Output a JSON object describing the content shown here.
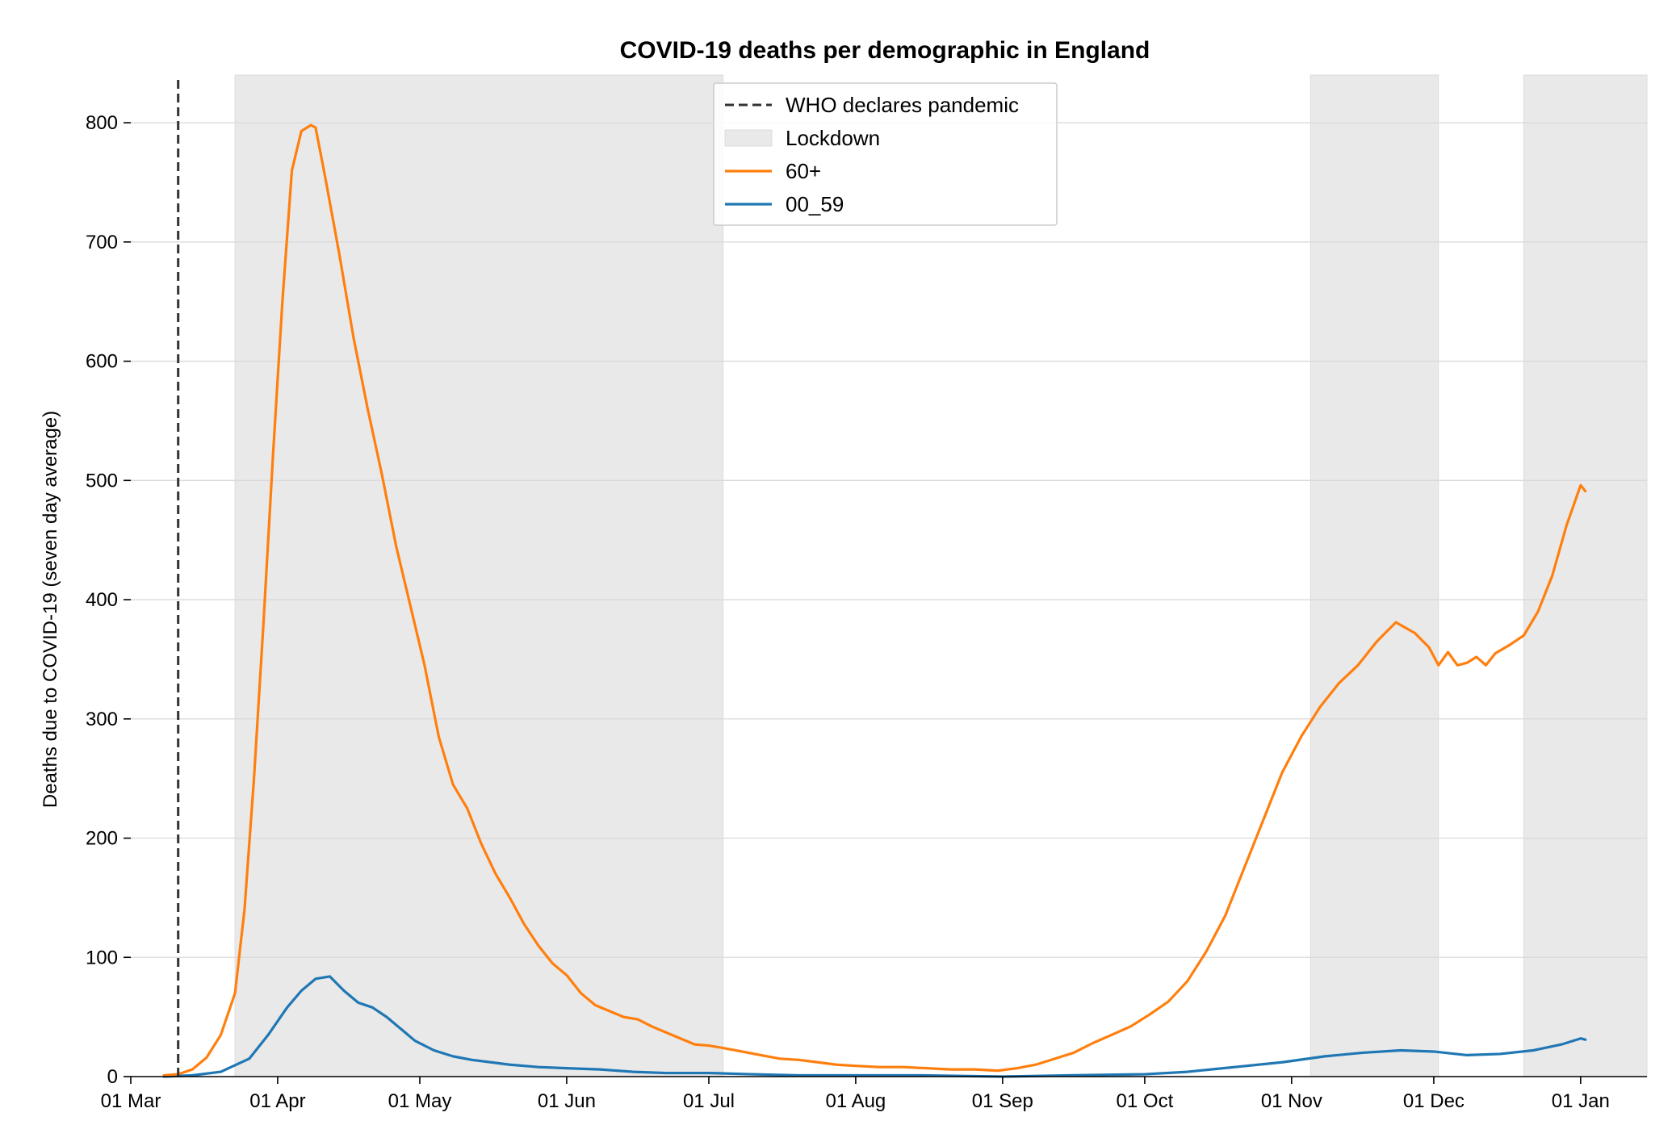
{
  "chart_data": {
    "type": "line",
    "title": "COVID-19 deaths per demographic in England",
    "xlabel": "",
    "ylabel": "Deaths due to COVID-19 (seven day average)",
    "x_range": [
      "2020-03-01",
      "2021-01-15"
    ],
    "ylim": [
      0,
      840
    ],
    "y_ticks": [
      0,
      100,
      200,
      300,
      400,
      500,
      600,
      700,
      800
    ],
    "x_ticks": [
      {
        "date": "2020-03-01",
        "label": "01 Mar"
      },
      {
        "date": "2020-04-01",
        "label": "01 Apr"
      },
      {
        "date": "2020-05-01",
        "label": "01 May"
      },
      {
        "date": "2020-06-01",
        "label": "01 Jun"
      },
      {
        "date": "2020-07-01",
        "label": "01 Jul"
      },
      {
        "date": "2020-08-01",
        "label": "01 Aug"
      },
      {
        "date": "2020-09-01",
        "label": "01 Sep"
      },
      {
        "date": "2020-10-01",
        "label": "01 Oct"
      },
      {
        "date": "2020-11-01",
        "label": "01 Nov"
      },
      {
        "date": "2020-12-01",
        "label": "01 Dec"
      },
      {
        "date": "2021-01-01",
        "label": "01 Jan"
      }
    ],
    "grid": "horizontal",
    "legend_position": "top-center",
    "pandemic_line": {
      "date": "2020-03-11",
      "label": "WHO declares pandemic",
      "color": "#333333"
    },
    "lockdowns": {
      "label": "Lockdown",
      "color": "#e9e9e9",
      "periods": [
        [
          "2020-03-23",
          "2020-07-04"
        ],
        [
          "2020-11-05",
          "2020-12-02"
        ],
        [
          "2020-12-20",
          "2021-01-15"
        ]
      ]
    },
    "series": [
      {
        "name": "60+",
        "color": "#ff7f0e",
        "points": [
          [
            "2020-03-08",
            1
          ],
          [
            "2020-03-11",
            2
          ],
          [
            "2020-03-14",
            6
          ],
          [
            "2020-03-17",
            16
          ],
          [
            "2020-03-20",
            35
          ],
          [
            "2020-03-23",
            70
          ],
          [
            "2020-03-25",
            140
          ],
          [
            "2020-03-27",
            250
          ],
          [
            "2020-03-29",
            380
          ],
          [
            "2020-03-31",
            520
          ],
          [
            "2020-04-02",
            650
          ],
          [
            "2020-04-04",
            760
          ],
          [
            "2020-04-06",
            793
          ],
          [
            "2020-04-08",
            798
          ],
          [
            "2020-04-09",
            796
          ],
          [
            "2020-04-11",
            755
          ],
          [
            "2020-04-14",
            690
          ],
          [
            "2020-04-17",
            620
          ],
          [
            "2020-04-20",
            560
          ],
          [
            "2020-04-23",
            505
          ],
          [
            "2020-04-26",
            445
          ],
          [
            "2020-04-29",
            395
          ],
          [
            "2020-05-02",
            345
          ],
          [
            "2020-05-05",
            285
          ],
          [
            "2020-05-08",
            245
          ],
          [
            "2020-05-11",
            225
          ],
          [
            "2020-05-14",
            195
          ],
          [
            "2020-05-17",
            170
          ],
          [
            "2020-05-20",
            150
          ],
          [
            "2020-05-23",
            128
          ],
          [
            "2020-05-26",
            110
          ],
          [
            "2020-05-29",
            95
          ],
          [
            "2020-06-01",
            85
          ],
          [
            "2020-06-04",
            70
          ],
          [
            "2020-06-07",
            60
          ],
          [
            "2020-06-10",
            55
          ],
          [
            "2020-06-13",
            50
          ],
          [
            "2020-06-16",
            48
          ],
          [
            "2020-06-19",
            42
          ],
          [
            "2020-06-22",
            37
          ],
          [
            "2020-06-25",
            32
          ],
          [
            "2020-06-28",
            27
          ],
          [
            "2020-07-01",
            26
          ],
          [
            "2020-07-04",
            24
          ],
          [
            "2020-07-08",
            21
          ],
          [
            "2020-07-12",
            18
          ],
          [
            "2020-07-16",
            15
          ],
          [
            "2020-07-20",
            14
          ],
          [
            "2020-07-24",
            12
          ],
          [
            "2020-07-28",
            10
          ],
          [
            "2020-08-01",
            9
          ],
          [
            "2020-08-06",
            8
          ],
          [
            "2020-08-11",
            8
          ],
          [
            "2020-08-16",
            7
          ],
          [
            "2020-08-21",
            6
          ],
          [
            "2020-08-26",
            6
          ],
          [
            "2020-08-31",
            5
          ],
          [
            "2020-09-04",
            7
          ],
          [
            "2020-09-08",
            10
          ],
          [
            "2020-09-12",
            15
          ],
          [
            "2020-09-16",
            20
          ],
          [
            "2020-09-20",
            28
          ],
          [
            "2020-09-24",
            35
          ],
          [
            "2020-09-28",
            42
          ],
          [
            "2020-10-02",
            52
          ],
          [
            "2020-10-06",
            63
          ],
          [
            "2020-10-10",
            80
          ],
          [
            "2020-10-14",
            105
          ],
          [
            "2020-10-18",
            135
          ],
          [
            "2020-10-22",
            175
          ],
          [
            "2020-10-26",
            215
          ],
          [
            "2020-10-30",
            255
          ],
          [
            "2020-11-03",
            285
          ],
          [
            "2020-11-07",
            310
          ],
          [
            "2020-11-11",
            330
          ],
          [
            "2020-11-15",
            345
          ],
          [
            "2020-11-19",
            365
          ],
          [
            "2020-11-23",
            381
          ],
          [
            "2020-11-27",
            372
          ],
          [
            "2020-11-30",
            360
          ],
          [
            "2020-12-02",
            345
          ],
          [
            "2020-12-04",
            356
          ],
          [
            "2020-12-06",
            345
          ],
          [
            "2020-12-08",
            347
          ],
          [
            "2020-12-10",
            352
          ],
          [
            "2020-12-12",
            345
          ],
          [
            "2020-12-14",
            355
          ],
          [
            "2020-12-17",
            362
          ],
          [
            "2020-12-20",
            370
          ],
          [
            "2020-12-23",
            390
          ],
          [
            "2020-12-26",
            420
          ],
          [
            "2020-12-29",
            462
          ],
          [
            "2021-01-01",
            496
          ],
          [
            "2021-01-02",
            491
          ]
        ]
      },
      {
        "name": "00_59",
        "color": "#1f77b4",
        "points": [
          [
            "2020-03-08",
            0
          ],
          [
            "2020-03-14",
            1
          ],
          [
            "2020-03-20",
            4
          ],
          [
            "2020-03-26",
            15
          ],
          [
            "2020-03-30",
            35
          ],
          [
            "2020-04-03",
            58
          ],
          [
            "2020-04-06",
            72
          ],
          [
            "2020-04-09",
            82
          ],
          [
            "2020-04-12",
            84
          ],
          [
            "2020-04-15",
            72
          ],
          [
            "2020-04-18",
            62
          ],
          [
            "2020-04-21",
            58
          ],
          [
            "2020-04-24",
            50
          ],
          [
            "2020-04-27",
            40
          ],
          [
            "2020-04-30",
            30
          ],
          [
            "2020-05-04",
            22
          ],
          [
            "2020-05-08",
            17
          ],
          [
            "2020-05-12",
            14
          ],
          [
            "2020-05-16",
            12
          ],
          [
            "2020-05-20",
            10
          ],
          [
            "2020-05-26",
            8
          ],
          [
            "2020-06-01",
            7
          ],
          [
            "2020-06-08",
            6
          ],
          [
            "2020-06-15",
            4
          ],
          [
            "2020-06-22",
            3
          ],
          [
            "2020-07-01",
            3
          ],
          [
            "2020-07-10",
            2
          ],
          [
            "2020-07-20",
            1
          ],
          [
            "2020-08-01",
            1
          ],
          [
            "2020-08-15",
            1
          ],
          [
            "2020-09-01",
            0
          ],
          [
            "2020-09-15",
            1
          ],
          [
            "2020-10-01",
            2
          ],
          [
            "2020-10-10",
            4
          ],
          [
            "2020-10-20",
            8
          ],
          [
            "2020-10-30",
            12
          ],
          [
            "2020-11-08",
            17
          ],
          [
            "2020-11-16",
            20
          ],
          [
            "2020-11-24",
            22
          ],
          [
            "2020-12-01",
            21
          ],
          [
            "2020-12-08",
            18
          ],
          [
            "2020-12-15",
            19
          ],
          [
            "2020-12-22",
            22
          ],
          [
            "2020-12-28",
            27
          ],
          [
            "2021-01-01",
            32
          ],
          [
            "2021-01-02",
            31
          ]
        ]
      }
    ]
  }
}
